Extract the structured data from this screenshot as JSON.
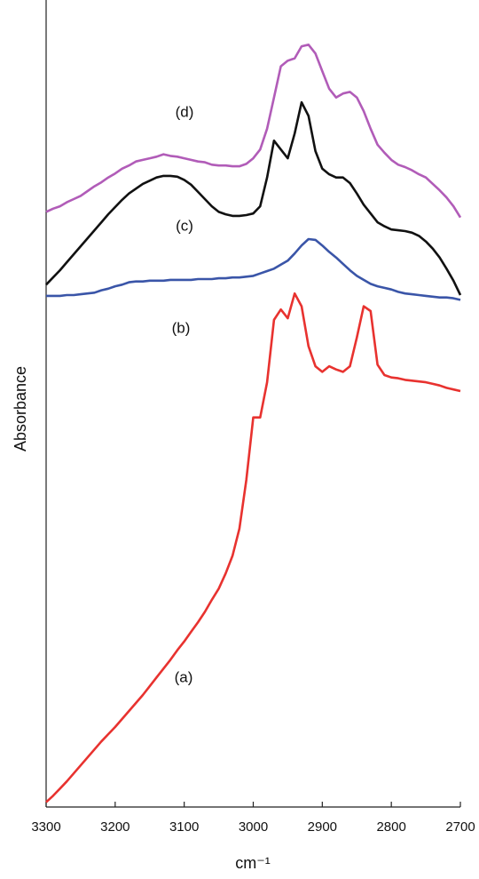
{
  "chart_data": {
    "type": "line",
    "x_label": "cm⁻¹",
    "y_label": "Absorbance",
    "xlim": [
      3300,
      2700
    ],
    "xticks": [
      3300,
      3200,
      3100,
      3000,
      2900,
      2800,
      2700
    ],
    "ylim": [
      0,
      100
    ],
    "x": [
      3300,
      3290,
      3280,
      3270,
      3260,
      3250,
      3240,
      3230,
      3220,
      3210,
      3200,
      3190,
      3180,
      3170,
      3160,
      3150,
      3140,
      3130,
      3120,
      3110,
      3100,
      3090,
      3080,
      3070,
      3060,
      3050,
      3040,
      3030,
      3020,
      3010,
      3000,
      2990,
      2980,
      2970,
      2960,
      2950,
      2940,
      2930,
      2920,
      2910,
      2900,
      2890,
      2880,
      2870,
      2860,
      2850,
      2840,
      2830,
      2820,
      2810,
      2800,
      2790,
      2780,
      2770,
      2760,
      2750,
      2740,
      2730,
      2720,
      2710,
      2700
    ],
    "series": [
      {
        "name": "(a)",
        "color": "#e8322f",
        "values": [
          0.6,
          1.4,
          2.3,
          3.2,
          4.2,
          5.2,
          6.2,
          7.2,
          8.2,
          9.1,
          10,
          11,
          12,
          13,
          14,
          15.1,
          16.2,
          17.3,
          18.4,
          19.6,
          20.7,
          21.9,
          23.1,
          24.4,
          25.9,
          27.3,
          29.2,
          31.4,
          34.8,
          40.9,
          48.7,
          48.7,
          53.1,
          60.9,
          62.2,
          61.1,
          64.2,
          62.6,
          57.6,
          55.1,
          54.4,
          55.1,
          54.7,
          54.4,
          55.1,
          58.7,
          62.6,
          62,
          55.3,
          54,
          53.7,
          53.6,
          53.4,
          53.3,
          53.2,
          53.1,
          52.9,
          52.7,
          52.4,
          52.2,
          52
        ]
      },
      {
        "name": "(b)",
        "color": "#3a55a8",
        "values": [
          63.9,
          63.9,
          63.9,
          64,
          64,
          64.1,
          64.2,
          64.3,
          64.6,
          64.8,
          65.1,
          65.3,
          65.6,
          65.7,
          65.7,
          65.8,
          65.8,
          65.8,
          65.9,
          65.9,
          65.9,
          65.9,
          66,
          66,
          66,
          66.1,
          66.1,
          66.2,
          66.2,
          66.3,
          66.4,
          66.7,
          67,
          67.3,
          67.8,
          68.3,
          69.2,
          70.2,
          71,
          70.9,
          70.2,
          69.4,
          68.7,
          67.9,
          67.1,
          66.4,
          65.9,
          65.4,
          65.1,
          64.9,
          64.7,
          64.4,
          64.2,
          64.1,
          64,
          63.9,
          63.8,
          63.7,
          63.7,
          63.6,
          63.4
        ]
      },
      {
        "name": "(c)",
        "color": "#111111",
        "values": [
          65.3,
          66.2,
          67.1,
          68.1,
          69.1,
          70.1,
          71.1,
          72.1,
          73.1,
          74.1,
          75,
          75.9,
          76.7,
          77.3,
          77.9,
          78.3,
          78.7,
          78.9,
          78.9,
          78.8,
          78.4,
          77.8,
          76.9,
          76,
          75.1,
          74.4,
          74.1,
          73.9,
          73.9,
          74,
          74.2,
          75.1,
          78.7,
          83.3,
          82.2,
          81.1,
          84.2,
          88.1,
          86.4,
          82,
          79.8,
          79.1,
          78.7,
          78.7,
          78,
          76.7,
          75.3,
          74.2,
          73.1,
          72.6,
          72.2,
          72.1,
          72,
          71.8,
          71.4,
          70.7,
          69.8,
          68.7,
          67.3,
          65.8,
          64
        ]
      },
      {
        "name": "(d)",
        "color": "#b15cb8",
        "values": [
          74.4,
          74.8,
          75.1,
          75.6,
          76,
          76.4,
          77,
          77.6,
          78.1,
          78.7,
          79.2,
          79.8,
          80.2,
          80.7,
          80.9,
          81.1,
          81.3,
          81.6,
          81.4,
          81.3,
          81.1,
          80.9,
          80.7,
          80.6,
          80.3,
          80.2,
          80.2,
          80.1,
          80.1,
          80.4,
          81.1,
          82.2,
          84.8,
          88.7,
          92.6,
          93.3,
          93.6,
          95.1,
          95.3,
          94.2,
          92,
          89.8,
          88.7,
          89.2,
          89.4,
          88.7,
          87,
          84.8,
          82.8,
          81.8,
          80.9,
          80.3,
          80,
          79.6,
          79.1,
          78.7,
          77.9,
          77.1,
          76.2,
          75.1,
          73.7
        ]
      }
    ]
  }
}
